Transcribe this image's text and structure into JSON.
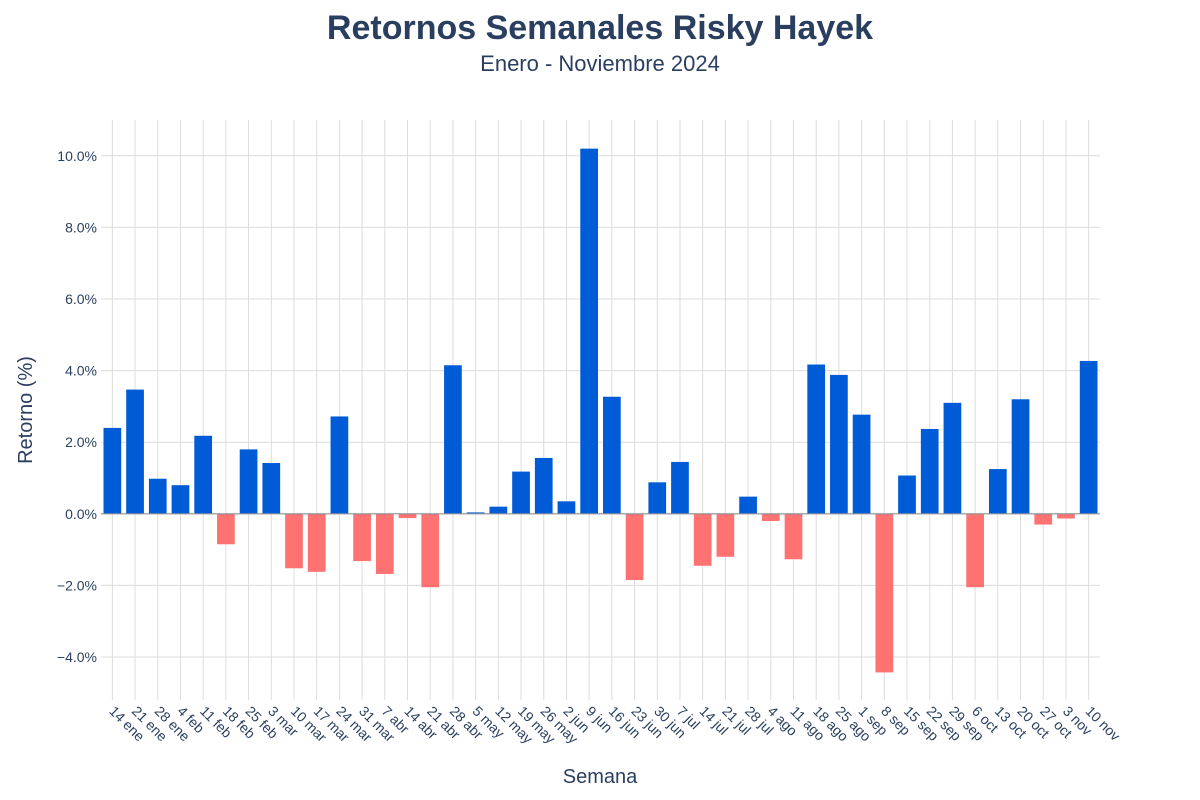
{
  "chart_data": {
    "type": "bar",
    "title": "Retornos Semanales Risky Hayek",
    "subtitle": "Enero - Noviembre 2024",
    "xlabel": "Semana",
    "ylabel": "Retorno (%)",
    "ylim": [
      -5.2,
      11.0
    ],
    "yticks": [
      -4,
      -2,
      0,
      2,
      4,
      6,
      8,
      10
    ],
    "ytick_labels": [
      "−4.0%",
      "−2.0%",
      "0.0%",
      "2.0%",
      "4.0%",
      "6.0%",
      "8.0%",
      "10.0%"
    ],
    "grid": true,
    "categories": [
      "14 ene",
      "21 ene",
      "28 ene",
      "4 feb",
      "11 feb",
      "18 feb",
      "25 feb",
      "3 mar",
      "10 mar",
      "17 mar",
      "24 mar",
      "31 mar",
      "7 abr",
      "14 abr",
      "21 abr",
      "28 abr",
      "5 may",
      "12 may",
      "19 may",
      "26 may",
      "2 jun",
      "9 jun",
      "16 jun",
      "23 jun",
      "30 jun",
      "7 jul",
      "14 jul",
      "21 jul",
      "28 jul",
      "4 ago",
      "11 ago",
      "18 ago",
      "25 ago",
      "1 sep",
      "8 sep",
      "15 sep",
      "22 sep",
      "29 sep",
      "6 oct",
      "13 oct",
      "20 oct",
      "27 oct",
      "3 nov",
      "10 nov"
    ],
    "values": [
      2.4,
      3.47,
      0.98,
      0.8,
      2.18,
      -0.85,
      1.8,
      1.42,
      -1.52,
      -1.62,
      2.72,
      -1.32,
      -1.68,
      -0.12,
      -2.05,
      4.15,
      0.04,
      0.2,
      1.18,
      1.56,
      0.35,
      10.2,
      3.27,
      -1.85,
      0.88,
      1.45,
      -1.45,
      -1.2,
      0.48,
      -0.2,
      -1.27,
      4.17,
      3.88,
      2.77,
      -4.43,
      1.07,
      2.37,
      3.1,
      -2.05,
      1.25,
      3.2,
      -0.3,
      -0.13,
      4.27
    ],
    "colors": {
      "positive": "#005bd6",
      "negative": "#ff7272"
    }
  }
}
